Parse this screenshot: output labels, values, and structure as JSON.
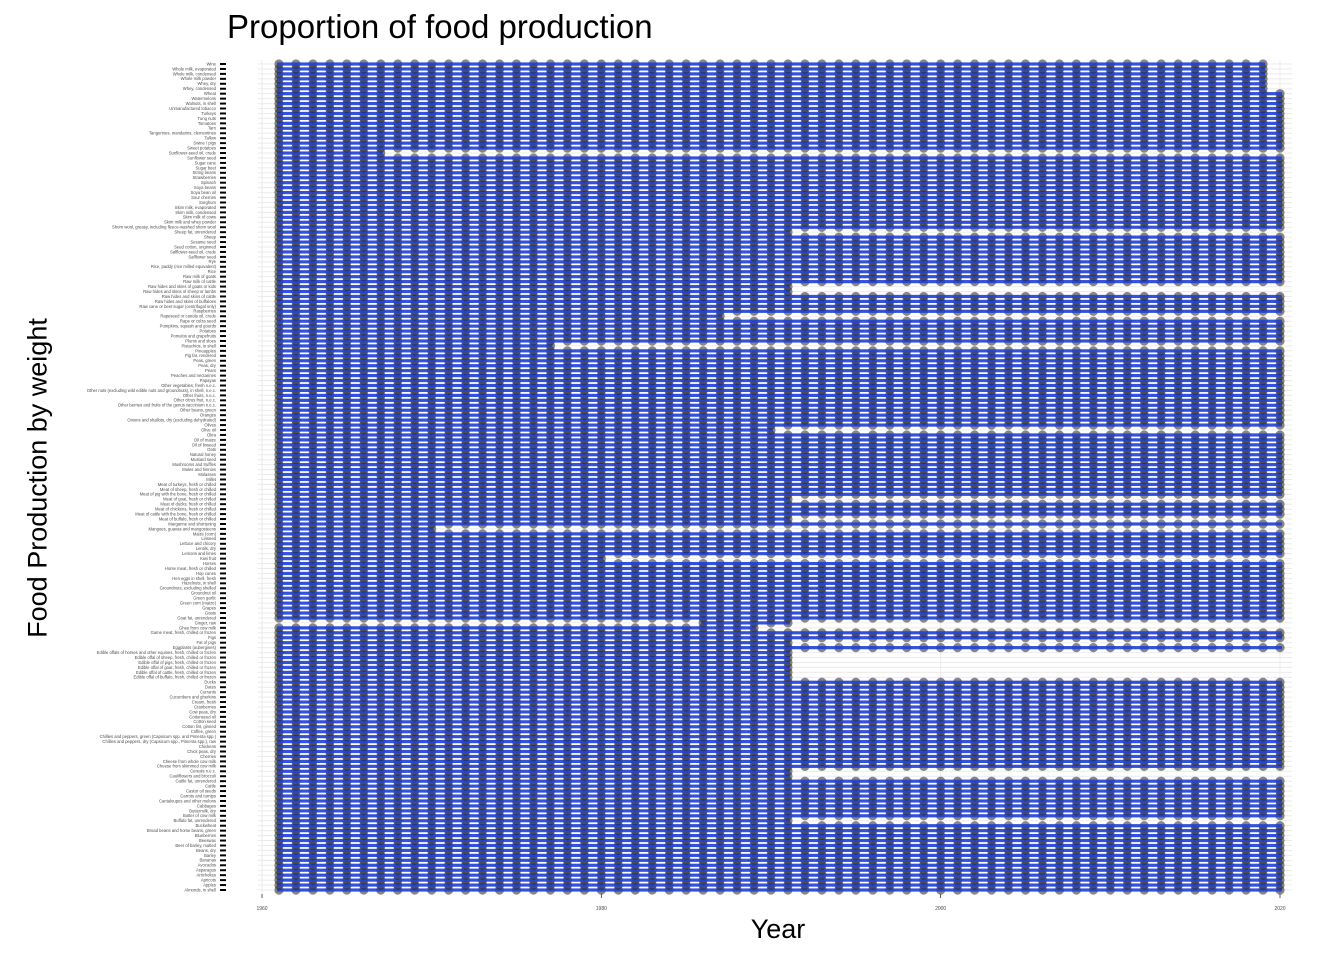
{
  "chart_data": {
    "type": "scatter",
    "title": "Proportion of food production",
    "xlabel": "Year",
    "ylabel": "Food Production by weight",
    "xlim": [
      1960,
      2020
    ],
    "x_ticks": [
      1960,
      1980,
      2000,
      2020
    ],
    "point_color": "#1f3fd6",
    "grid": true,
    "legend": "none",
    "categories": [
      "Almonds, in shell",
      "Apples",
      "Apricots",
      "Artichokes",
      "Asparagus",
      "Avocados",
      "Bananas",
      "Barley",
      "Beans, dry",
      "Beer of barley, malted",
      "Beeswax",
      "Blueberries",
      "Broad beans and horse beans, green",
      "Buckwheat",
      "Buffalo fat, unrendered",
      "Butter of cow milk",
      "Buttermilk, dry",
      "Cabbages",
      "Cantaloupes and other melons",
      "Carrots and turnips",
      "Castor oil seeds",
      "Cattle",
      "Cattle fat, unrendered",
      "Cauliflowers and broccoli",
      "Cereals n.e.c.",
      "Cheese from skimmed cow milk",
      "Cheese from whole cow milk",
      "Cherries",
      "Chick peas, dry",
      "Chickens",
      "Chillies and peppers, dry (Capsicum spp., Pimenta spp.), raw",
      "Chillies and peppers, green (Capsicum spp. and Pimenta spp.)",
      "Coffee, green",
      "Cotton lint, ginned",
      "Cotton seed",
      "Cottonseed oil",
      "Cow peas, dry",
      "Cranberries",
      "Cream, fresh",
      "Cucumbers and gherkins",
      "Currants",
      "Dates",
      "Ducks",
      "Edible offal of buffalo, fresh, chilled or frozen",
      "Edible offal of cattle, fresh, chilled or frozen",
      "Edible offal of goat, fresh, chilled or frozen",
      "Edible offal of pigs, fresh, chilled or frozen",
      "Edible offal of sheep, fresh, chilled or frozen",
      "Edible offals of horses and other equines, fresh, chilled or frozen",
      "Eggplants (aubergines)",
      "Fat of pigs",
      "Figs",
      "Game meat, fresh, chilled or frozen",
      "Ghee from cow milk",
      "Ginger, raw",
      "Goat fat, unrendered",
      "Goats",
      "Grapes",
      "Green corn (maize)",
      "Green garlic",
      "Groundnut oil",
      "Groundnuts, excluding shelled",
      "Hazelnuts, in shell",
      "Hen eggs in shell, fresh",
      "Hop cones",
      "Horse meat, fresh or chilled",
      "Horses",
      "Kiwi fruit",
      "Lemons and limes",
      "Lentils, dry",
      "Lettuce and chicory",
      "Linseed",
      "Maize (corn)",
      "Mangoes, guavas and mangosteens",
      "Margarine and shortening",
      "Meat of buffalo, fresh or chilled",
      "Meat of cattle with the bone, fresh or chilled",
      "Meat of chickens, fresh or chilled",
      "Meat of ducks, fresh or chilled",
      "Meat of goat, fresh or chilled",
      "Meat of pig with the bone, fresh or chilled",
      "Meat of sheep, fresh or chilled",
      "Meat of turkeys, fresh or chilled",
      "Millet",
      "Molasses",
      "Mules and hinnies",
      "Mushrooms and truffles",
      "Mustard seed",
      "Natural honey",
      "Oats",
      "Oil of linseed",
      "Oil of maize",
      "Okra",
      "Olive oil",
      "Olives",
      "Onions and shallots, dry (excluding dehydrated)",
      "Oranges",
      "Other beans, green",
      "Other berries and fruits of the genus vaccinium n.e.c.",
      "Other citrus fruit, n.e.c.",
      "Other fruits, n.e.c.",
      "Other nuts (excluding wild edible nuts and groundnuts), in shell, n.e.c.",
      "Other vegetables, fresh n.e.c.",
      "Papayas",
      "Peaches and nectarines",
      "Pears",
      "Peas, dry",
      "Peas, green",
      "Pig fat, rendered",
      "Pineapples",
      "Pistachios, in shell",
      "Plums and sloes",
      "Pomelos and grapefruits",
      "Potatoes",
      "Pumpkins, squash and gourds",
      "Rape or colza seed",
      "Rapeseed or canola oil, crude",
      "Raspberries",
      "Raw cane or beet sugar (centrifugal only)",
      "Raw hides and skins of buffaloes",
      "Raw hides and skins of cattle",
      "Raw hides and skins of sheep or lambs",
      "Raw hides and skins of goats or kids",
      "Raw milk of cattle",
      "Raw milk of goats",
      "Rice",
      "Rice, paddy (rice milled equivalent)",
      "Rye",
      "Safflower seed",
      "Safflower-seed oil, crude",
      "Seed cotton, unginned",
      "Sesame seed",
      "Sheep",
      "Sheep fat, unrendered",
      "Shorn wool, greasy, including fleece-washed shorn wool",
      "Skim milk and whey powder",
      "Skim milk of cows",
      "Skim milk, condensed",
      "Skim milk, evaporated",
      "Sorghum",
      "Sour cherries",
      "Soya bean oil",
      "Soya beans",
      "Spinach",
      "Strawberries",
      "String beans",
      "Sugar beet",
      "Sugar cane",
      "Sunflower seed",
      "Sunflower-seed oil, crude",
      "Sweet potatoes",
      "Swine / pigs",
      "Tallow",
      "Tangerines, mandarins, clementines",
      "Taro",
      "Tomatoes",
      "Tung nuts",
      "Turkeys",
      "Unmanufactured tobacco",
      "Walnuts, in shell",
      "Watermelons",
      "Wheat",
      "Whey, condensed",
      "Whey, dry",
      "Whole milk powder",
      "Whole milk, condensed",
      "Whole milk, evaporated",
      "Wine"
    ],
    "series": [
      {
        "x": [
          1961,
          2019
        ],
        "y_range_by_category": {
          "default": [
            1961,
            2020
          ],
          "Wine": [
            1961,
            2019
          ],
          "Whole milk, evaporated": [
            1961,
            2019
          ],
          "Whole milk, condensed": [
            1961,
            2019
          ],
          "Whole milk powder": [
            1961,
            2019
          ],
          "Whey, dry": [
            1961,
            2019
          ],
          "Whey, condensed": [
            1961,
            2019
          ],
          "Sunflower-seed oil, crude": [
            1961,
            1967
          ],
          "Sheep fat, unrendered": [
            1961,
            1991
          ],
          "Raw hides and skins of sheep or lambs": [
            1961,
            1991
          ],
          "Raw hides and skins of goats or kids": [
            1961,
            1991
          ],
          "Rapeseed or canola oil, crude": [
            1961,
            1987
          ],
          "Pistachios, in shell": [
            1961,
            1977
          ],
          "Olive oil": [
            1961,
            1990
          ],
          "Meat of goat, fresh or chilled": [
            1961,
            1991
          ],
          "Meat of buffalo, fresh or chilled": [
            1961,
            1991
          ],
          "Mangoes, guavas and mangosteens": [
            1961,
            1970
          ],
          "Kiwi fruit": [
            1961,
            1980
          ],
          "Ginger, raw": [
            1986,
            1991
          ],
          "Ghee from cow milk": [
            1961,
            1989
          ],
          "Fat of pigs": [
            1961,
            1991
          ],
          "Edible offals of horses and other equines, fresh, chilled or frozen": [
            1961,
            1991
          ],
          "Edible offal of sheep, fresh, chilled or frozen": [
            1961,
            1991
          ],
          "Edible offal of pigs, fresh, chilled or frozen": [
            1961,
            1991
          ],
          "Edible offal of goat, fresh, chilled or frozen": [
            1961,
            1991
          ],
          "Edible offal of cattle, fresh, chilled or frozen": [
            1961,
            1991
          ],
          "Edible offal of buffalo, fresh, chilled or frozen": [
            1961,
            1991
          ],
          "Cauliflowers and broccoli": [
            1961,
            1991
          ],
          "Cereals n.e.c.": [
            1961,
            1991
          ],
          "Buffalo fat, unrendered": [
            1961,
            1991
          ]
        }
      }
    ]
  }
}
